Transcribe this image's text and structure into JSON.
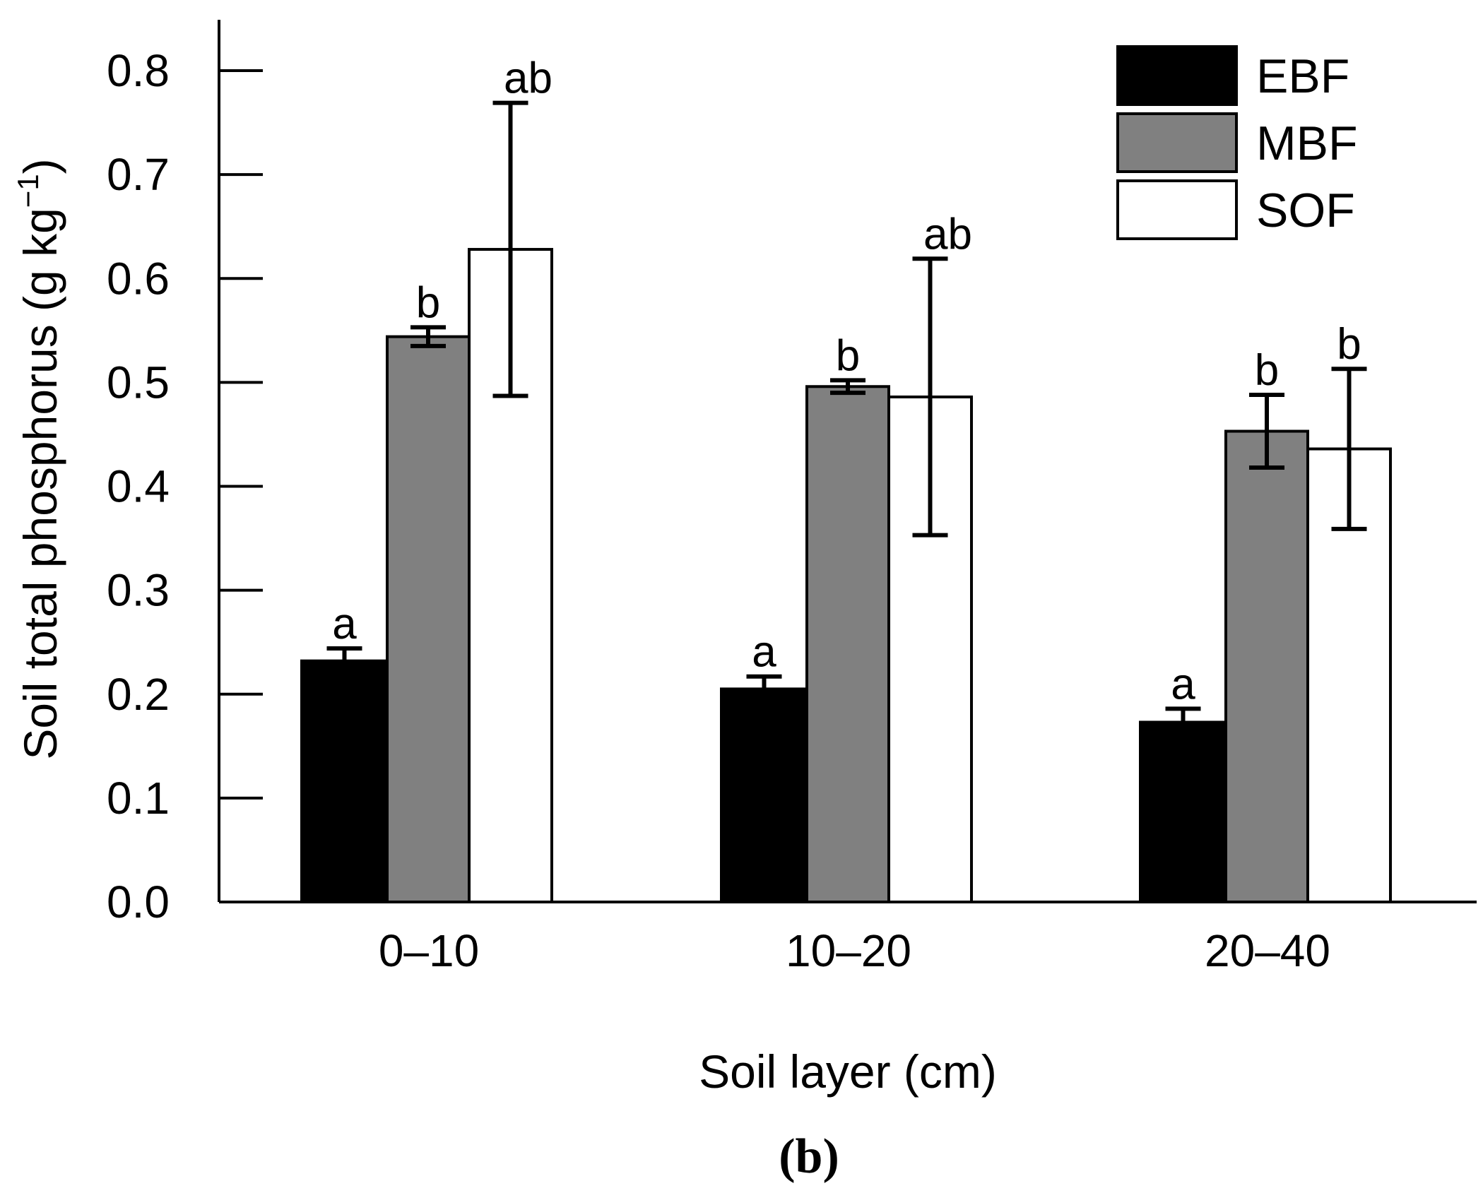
{
  "chart_data": {
    "type": "bar",
    "categories": [
      "0–10",
      "10–20",
      "20–40"
    ],
    "series": [
      {
        "name": "EBF",
        "color": "#000000",
        "values": [
          0.232,
          0.205,
          0.173
        ],
        "errors": [
          0.012,
          0.012,
          0.013
        ],
        "labels": [
          "a",
          "a",
          "a"
        ]
      },
      {
        "name": "MBF",
        "color": "#808080",
        "values": [
          0.544,
          0.496,
          0.453
        ],
        "errors": [
          0.009,
          0.006,
          0.035
        ],
        "labels": [
          "b",
          "b",
          "b"
        ]
      },
      {
        "name": "SOF",
        "color": "#ffffff",
        "values": [
          0.628,
          0.486,
          0.436
        ],
        "errors": [
          0.141,
          0.133,
          0.077
        ],
        "labels": [
          "ab",
          "ab",
          "b"
        ]
      }
    ],
    "xlabel": "Soil layer (cm)",
    "ylabel": "Soil total phosphorus (g kg",
    "ylabel_superscript": "−1",
    "ylabel_close": ")",
    "ylim": [
      0,
      0.8
    ],
    "yticks": [
      "0.0",
      "0.1",
      "0.2",
      "0.3",
      "0.4",
      "0.5",
      "0.6",
      "0.7",
      "0.8"
    ],
    "legend_position": "top-right",
    "grid": false
  },
  "panel_label": "(b)"
}
